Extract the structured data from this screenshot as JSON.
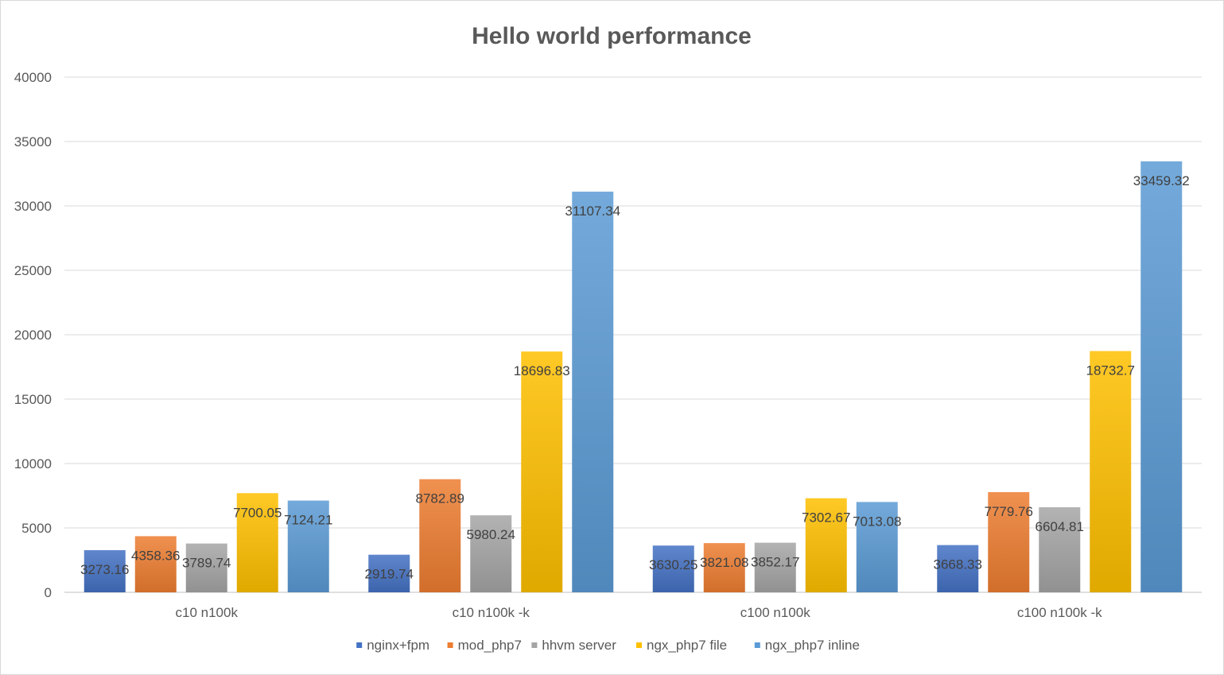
{
  "chart_data": {
    "type": "bar",
    "title": "Hello world performance",
    "categories": [
      "c10 n100k",
      "c10 n100k -k",
      "c100 n100k",
      "c100 n100k -k"
    ],
    "series": [
      {
        "name": "nginx+fpm",
        "values": [
          3273.16,
          2919.74,
          3630.25,
          3668.33
        ],
        "color": "#4472c4"
      },
      {
        "name": "mod_php7",
        "values": [
          4358.36,
          8782.89,
          3821.08,
          7779.76
        ],
        "color": "#ed7d31"
      },
      {
        "name": "hhvm server",
        "values": [
          3789.74,
          5980.24,
          3852.17,
          6604.81
        ],
        "color": "#a5a5a5"
      },
      {
        "name": "ngx_php7 file",
        "values": [
          7700.05,
          18696.83,
          7302.67,
          18732.7
        ],
        "color": "#ffc000"
      },
      {
        "name": "ngx_php7 inline",
        "values": [
          7124.21,
          31107.34,
          7013.08,
          33459.32
        ],
        "color": "#5b9bd5"
      }
    ],
    "data_labels": [
      [
        "3273.16",
        "2919.74",
        "3630.25",
        "3668.33"
      ],
      [
        "4358.36",
        "8782.89",
        "3821.08",
        "7779.76"
      ],
      [
        "3789.74",
        "5980.24",
        "3852.17",
        "6604.81"
      ],
      [
        "7700.05",
        "18696.83",
        "7302.67",
        "18732.7"
      ],
      [
        "7124.21",
        "31107.34",
        "7013.08",
        "33459.32"
      ]
    ],
    "ylim": [
      0,
      40000
    ],
    "yticks": [
      0,
      5000,
      10000,
      15000,
      20000,
      25000,
      30000,
      35000,
      40000
    ],
    "ytick_labels": [
      "0",
      "5000",
      "10000",
      "15000",
      "20000",
      "25000",
      "30000",
      "35000",
      "40000"
    ],
    "grid": true,
    "legend_position": "bottom"
  }
}
